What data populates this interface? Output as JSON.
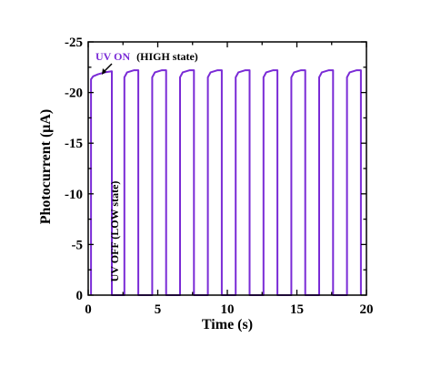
{
  "chart_data": {
    "type": "line",
    "xlabel": "Time (s)",
    "ylabel": "Photocurrent (μA)",
    "xlim": [
      0,
      20
    ],
    "ylim": [
      0,
      -25
    ],
    "y_axis_inverted": true,
    "grid": false,
    "xticks": [
      0,
      5,
      10,
      15,
      20
    ],
    "xtick_labels": [
      "0",
      "5",
      "10",
      "15",
      "20"
    ],
    "yticks": [
      0,
      -5,
      -10,
      -15,
      -20,
      -25
    ],
    "ytick_labels": [
      "0",
      "-5",
      "-10",
      "-15",
      "-20",
      "-25"
    ],
    "series": [
      {
        "color": "#7a2bd6",
        "x": [
          0.2,
          0.2,
          0.35,
          0.7,
          1.2,
          1.7,
          1.7,
          2.6,
          2.6,
          2.8,
          3.3,
          3.6,
          3.6,
          4.6,
          4.6,
          4.8,
          5.3,
          5.6,
          5.6,
          6.6,
          6.6,
          6.8,
          7.3,
          7.6,
          7.6,
          8.6,
          8.6,
          8.8,
          9.3,
          9.6,
          9.6,
          10.6,
          10.6,
          10.8,
          11.3,
          11.6,
          11.6,
          12.6,
          12.6,
          12.8,
          13.3,
          13.6,
          13.6,
          14.6,
          14.6,
          14.8,
          15.3,
          15.6,
          15.6,
          16.6,
          16.6,
          16.8,
          17.3,
          17.6,
          17.6,
          18.6,
          18.6,
          18.8,
          19.3,
          19.6,
          19.6
        ],
        "y": [
          0,
          -21.3,
          -21.6,
          -21.8,
          -22.0,
          -22.1,
          0,
          0,
          -21.5,
          -22.0,
          -22.2,
          -22.2,
          0,
          0,
          -21.5,
          -22.0,
          -22.2,
          -22.2,
          0,
          0,
          -21.5,
          -22.0,
          -22.2,
          -22.2,
          0,
          0,
          -21.5,
          -22.0,
          -22.2,
          -22.2,
          0,
          0,
          -21.5,
          -22.0,
          -22.2,
          -22.2,
          0,
          0,
          -21.5,
          -22.0,
          -22.2,
          -22.2,
          0,
          0,
          -21.5,
          -22.0,
          -22.2,
          -22.2,
          0,
          0,
          -21.5,
          -22.0,
          -22.2,
          -22.2,
          0,
          0,
          -21.5,
          -22.0,
          -22.2,
          -22.2,
          0
        ]
      }
    ],
    "annotations": {
      "on_label": "UV ON",
      "on_suffix": "(HIGH state)",
      "off_label": "UV OFF (LOW state)",
      "on_color": "#7a2bd6",
      "text_color": "#000000"
    }
  }
}
